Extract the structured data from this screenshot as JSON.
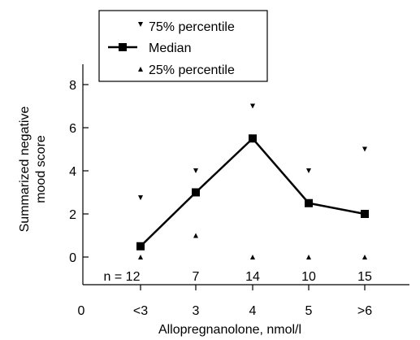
{
  "chart_data": {
    "type": "line",
    "xlabel": "Allopregnanolone, nmol/l",
    "ylabel_line1": "Summarized negative",
    "ylabel_line2": "mood score",
    "x_origin_label": "0",
    "categories": [
      "<3",
      "3",
      "4",
      "5",
      ">6"
    ],
    "y_ticks": [
      "0",
      "2",
      "4",
      "6",
      "8"
    ],
    "ylim": [
      -1.2,
      8.8
    ],
    "n_prefix": "n = ",
    "n_values": [
      "12",
      "7",
      "14",
      "10",
      "15"
    ],
    "legend": {
      "p75": "75% percentile",
      "median": "Median",
      "p25": "25% percentile"
    },
    "series": [
      {
        "name": "Median",
        "marker": "square",
        "line": true,
        "values": [
          0.5,
          3.0,
          5.5,
          2.5,
          2.0
        ]
      },
      {
        "name": "75% percentile",
        "marker": "triangle-down",
        "line": false,
        "values": [
          2.75,
          4.0,
          7.0,
          4.0,
          5.0
        ]
      },
      {
        "name": "25% percentile",
        "marker": "triangle-up",
        "line": false,
        "values": [
          0.0,
          1.0,
          0.0,
          0.0,
          0.0
        ]
      }
    ],
    "grid": false,
    "legend_position": "top-left"
  }
}
